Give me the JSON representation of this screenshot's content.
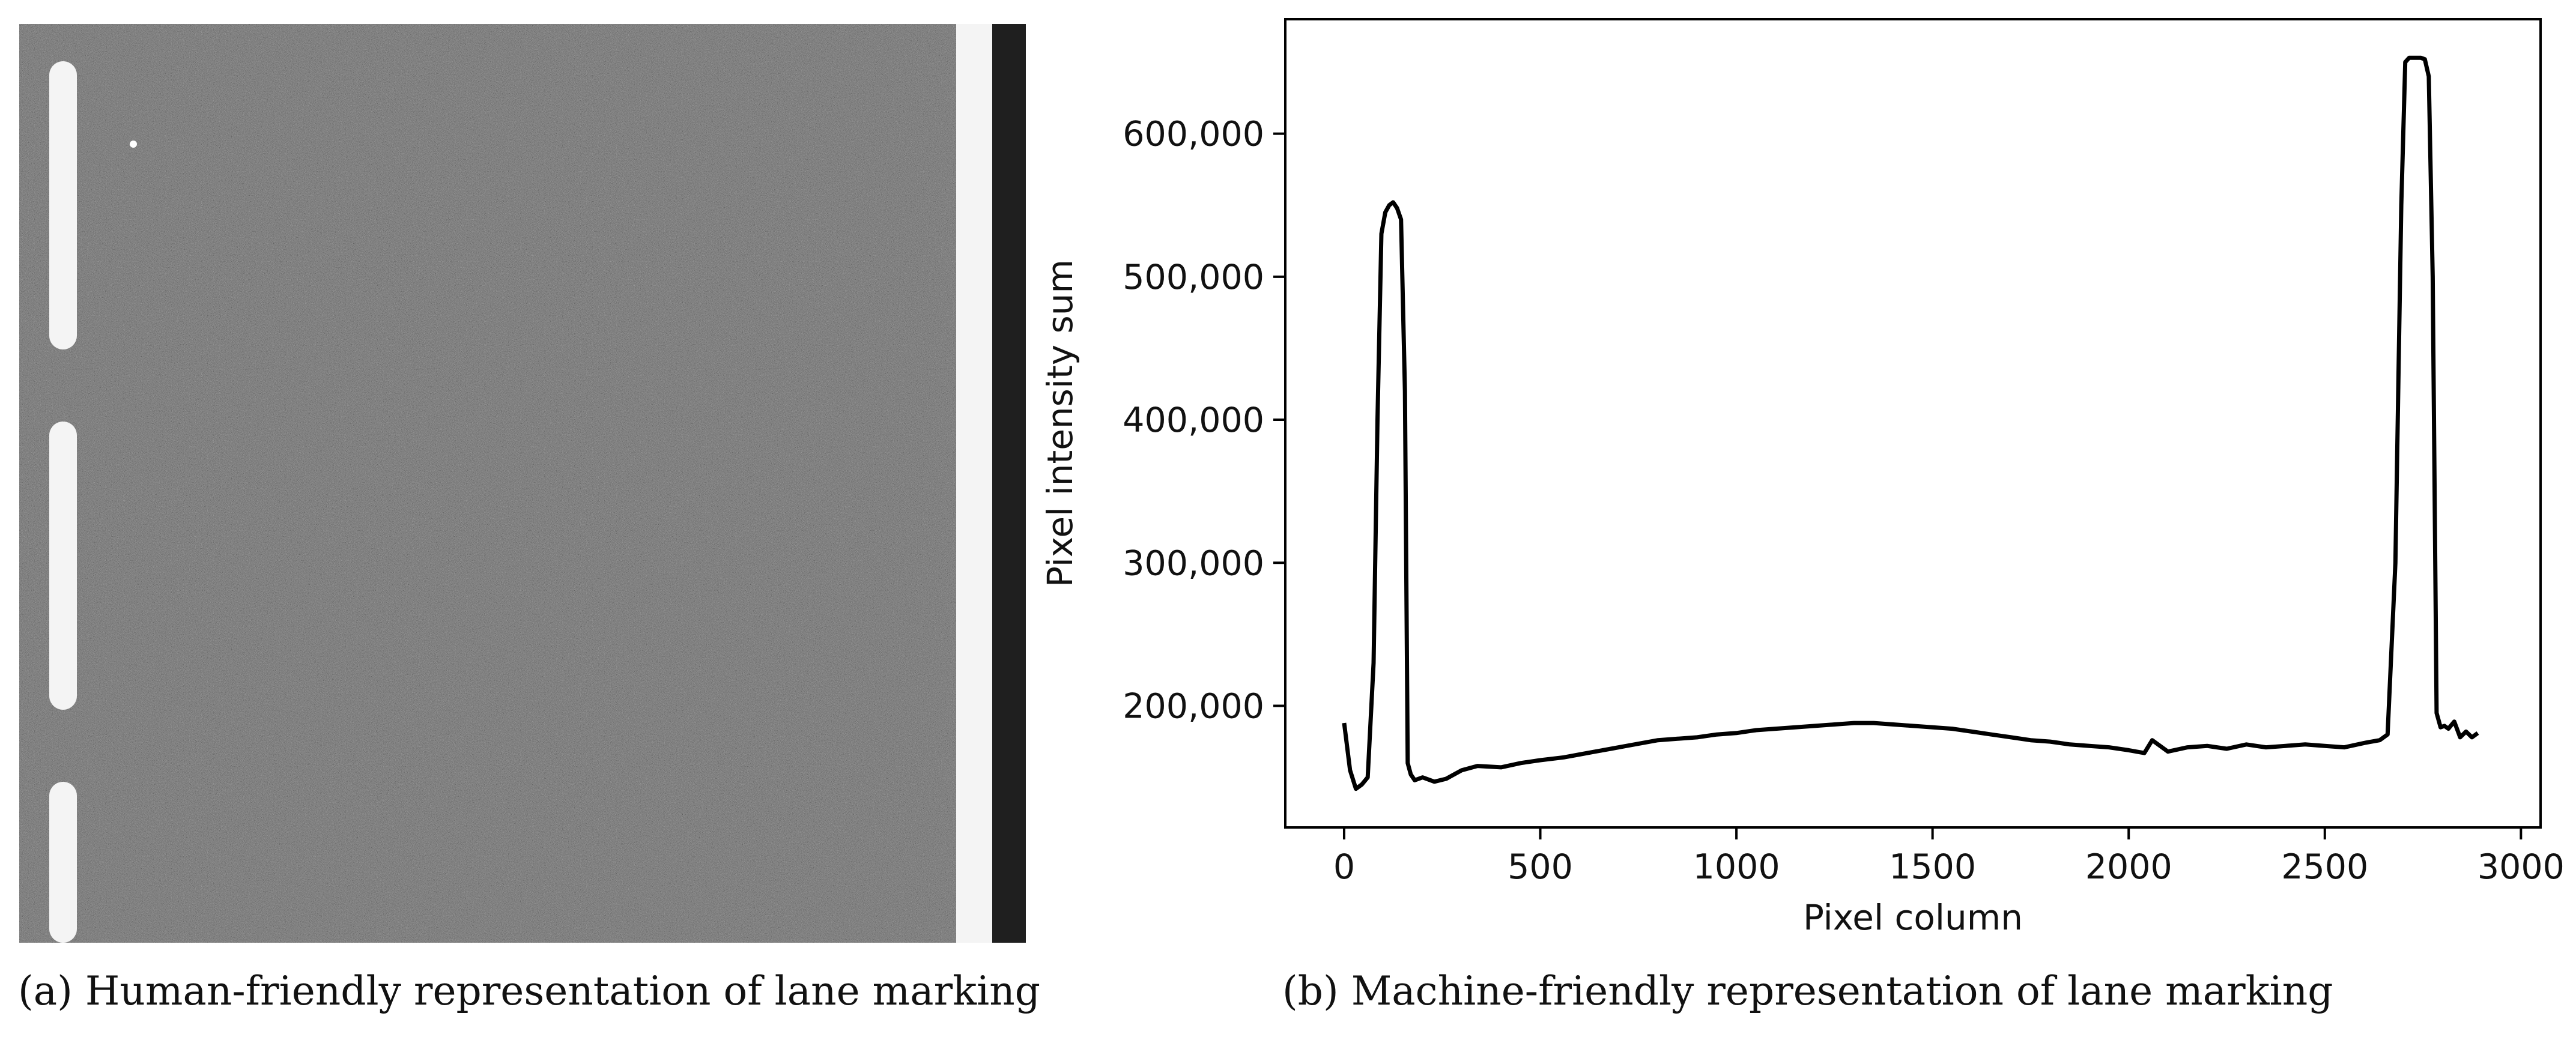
{
  "figure": {
    "caption_a": "(a) Human-friendly representation of lane marking",
    "caption_b": "(b) Machine-friendly representation of lane marking",
    "photo_icon": "lane-marking-road-photo"
  },
  "chart_data": {
    "type": "line",
    "title": "",
    "xlabel": "Pixel column",
    "ylabel": "Pixel intensity sum",
    "xlim": [
      -150,
      3050
    ],
    "ylim": [
      115000,
      680000
    ],
    "xticks": [
      0,
      500,
      1000,
      1500,
      2000,
      2500,
      3000
    ],
    "xtick_labels": [
      "0",
      "500",
      "1000",
      "1500",
      "2000",
      "2500",
      "3000"
    ],
    "yticks": [
      200000,
      300000,
      400000,
      500000,
      600000
    ],
    "ytick_labels": [
      "200,000",
      "300,000",
      "400,000",
      "500,000",
      "600,000"
    ],
    "grid": false,
    "series": [
      {
        "name": "intensity",
        "color": "#000000",
        "x": [
          0,
          15,
          30,
          45,
          60,
          75,
          85,
          95,
          105,
          115,
          125,
          135,
          145,
          155,
          162,
          170,
          180,
          200,
          230,
          260,
          300,
          340,
          400,
          450,
          500,
          560,
          600,
          640,
          680,
          720,
          760,
          800,
          850,
          900,
          950,
          1000,
          1050,
          1100,
          1150,
          1200,
          1250,
          1300,
          1350,
          1400,
          1450,
          1500,
          1550,
          1600,
          1650,
          1700,
          1750,
          1800,
          1850,
          1900,
          1950,
          2000,
          2040,
          2060,
          2100,
          2150,
          2200,
          2250,
          2300,
          2350,
          2400,
          2450,
          2500,
          2550,
          2600,
          2640,
          2660,
          2680,
          2695,
          2705,
          2715,
          2725,
          2735,
          2745,
          2755,
          2765,
          2775,
          2785,
          2795,
          2805,
          2815,
          2830,
          2845,
          2860,
          2875,
          2890
        ],
        "values": [
          188000,
          155000,
          142000,
          145000,
          150000,
          230000,
          400000,
          530000,
          545000,
          550000,
          552000,
          548000,
          540000,
          420000,
          160000,
          152000,
          148000,
          150000,
          147000,
          149000,
          155000,
          158000,
          157000,
          160000,
          162000,
          164000,
          166000,
          168000,
          170000,
          172000,
          174000,
          176000,
          177000,
          178000,
          180000,
          181000,
          183000,
          184000,
          185000,
          186000,
          187000,
          188000,
          188000,
          187000,
          186000,
          185000,
          184000,
          182000,
          180000,
          178000,
          176000,
          175000,
          173000,
          172000,
          171000,
          169000,
          167000,
          176000,
          168000,
          171000,
          172000,
          170000,
          173000,
          171000,
          172000,
          173000,
          172000,
          171000,
          174000,
          176000,
          180000,
          300000,
          550000,
          650000,
          653000,
          653000,
          653000,
          653000,
          652000,
          640000,
          500000,
          195000,
          185000,
          186000,
          184000,
          189000,
          178000,
          182000,
          178000,
          181000
        ]
      }
    ]
  }
}
